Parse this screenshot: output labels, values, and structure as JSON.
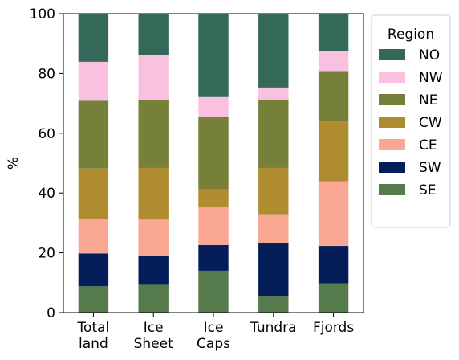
{
  "chart_data": {
    "type": "bar",
    "stacked": true,
    "categories": [
      [
        "Total",
        "land"
      ],
      [
        "Ice",
        "Sheet"
      ],
      [
        "Ice",
        "Caps"
      ],
      [
        "Tundra"
      ],
      [
        "Fjords"
      ]
    ],
    "ylabel": "%",
    "xlabel": "",
    "title": "",
    "ylim": [
      0,
      100
    ],
    "yticks": [
      0,
      20,
      40,
      60,
      80,
      100
    ],
    "grid": false,
    "legend": {
      "title": "Region",
      "placement": "outside-right-top"
    },
    "series": [
      {
        "name": "SE",
        "color": "#557a4c",
        "values": [
          8.8,
          9.3,
          14.0,
          5.6,
          9.8
        ]
      },
      {
        "name": "SW",
        "color": "#041e5a",
        "values": [
          11.0,
          9.7,
          8.6,
          17.7,
          12.5
        ]
      },
      {
        "name": "CE",
        "color": "#f9a693",
        "values": [
          11.6,
          12.1,
          12.6,
          9.6,
          21.6
        ]
      },
      {
        "name": "CW",
        "color": "#af8c30",
        "values": [
          16.8,
          17.3,
          6.0,
          15.5,
          20.1
        ]
      },
      {
        "name": "NE",
        "color": "#768039",
        "values": [
          22.7,
          22.6,
          24.3,
          22.9,
          16.8
        ]
      },
      {
        "name": "NW",
        "color": "#f9c0df",
        "values": [
          13.0,
          15.1,
          6.6,
          4.0,
          6.6
        ]
      },
      {
        "name": "NO",
        "color": "#34695a",
        "values": [
          16.1,
          13.9,
          27.9,
          24.7,
          12.6
        ]
      }
    ],
    "legend_order": [
      "NO",
      "NW",
      "NE",
      "CW",
      "CE",
      "SW",
      "SE"
    ]
  }
}
